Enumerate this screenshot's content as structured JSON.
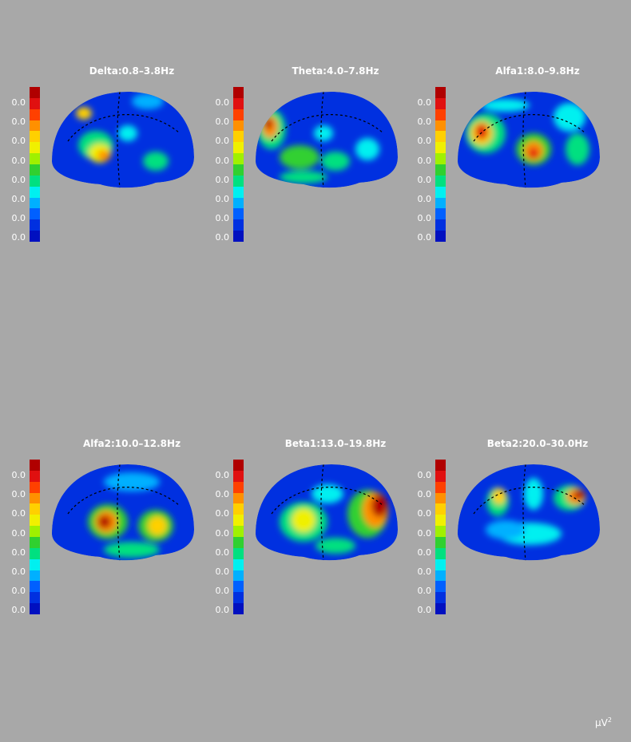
{
  "panels": [
    {
      "title": "Delta:0.8–3.8Hz",
      "ticks": [
        "0.0",
        "0.0",
        "0.0",
        "0.0",
        "0.0",
        "0.0",
        "0.0",
        "0.0"
      ]
    },
    {
      "title": "Theta:4.0–7.8Hz",
      "ticks": [
        "0.0",
        "0.0",
        "0.0",
        "0.0",
        "0.0",
        "0.0",
        "0.0",
        "0.0"
      ]
    },
    {
      "title": "Alfa1:8.0–9.8Hz",
      "ticks": [
        "0.0",
        "0.0",
        "0.0",
        "0.0",
        "0.0",
        "0.0",
        "0.0",
        "0.0"
      ]
    },
    {
      "title": "Alfa2:10.0–12.8Hz",
      "ticks": [
        "0.0",
        "0.0",
        "0.0",
        "0.0",
        "0.0",
        "0.0",
        "0.0",
        "0.0"
      ]
    },
    {
      "title": "Beta1:13.0–19.8Hz",
      "ticks": [
        "0.0",
        "0.0",
        "0.0",
        "0.0",
        "0.0",
        "0.0",
        "0.0",
        "0.0"
      ]
    },
    {
      "title": "Beta2:20.0–30.0Hz",
      "ticks": [
        "0.0",
        "0.0",
        "0.0",
        "0.0",
        "0.0",
        "0.0",
        "0.0",
        "0.0"
      ]
    }
  ],
  "colorscale": [
    "#b00000",
    "#e01010",
    "#ff4000",
    "#ff9000",
    "#ffd000",
    "#f0f000",
    "#a0f000",
    "#30d030",
    "#00e080",
    "#00f0f0",
    "#00b0ff",
    "#0060ff",
    "#0030e0",
    "#0010c0"
  ],
  "unit": {
    "base": "μV",
    "exp": "2"
  }
}
